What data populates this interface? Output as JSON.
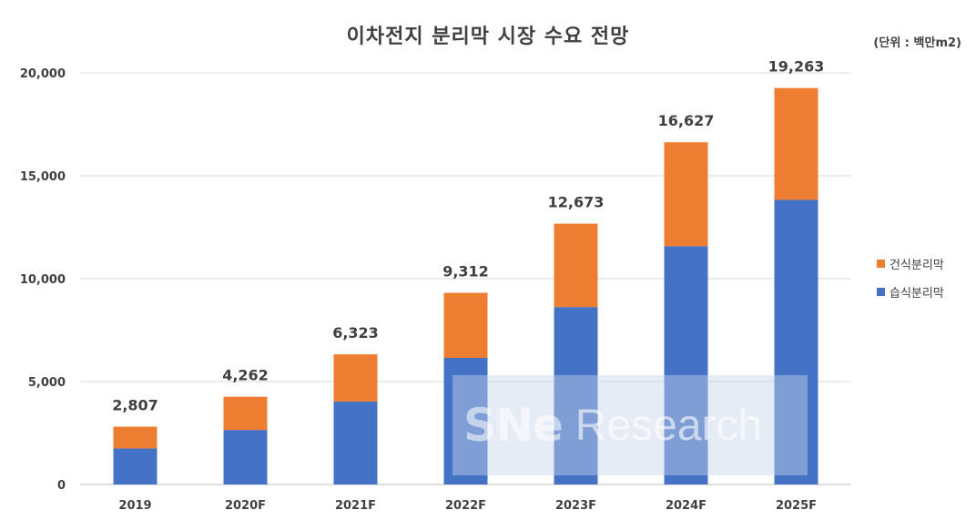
{
  "chart_data": {
    "type": "bar",
    "stacked": true,
    "title": "이차전지 분리막 시장 수요 전망",
    "unit": "(단위 : 백만m2)",
    "categories": [
      "2019",
      "2020F",
      "2021F",
      "2022F",
      "2023F",
      "2024F",
      "2025F"
    ],
    "series": [
      {
        "name": "습식분리막",
        "color": "#4472C4",
        "values": [
          1750,
          2650,
          4030,
          6150,
          8620,
          11580,
          13830
        ]
      },
      {
        "name": "건식분리막",
        "color": "#ED7D31",
        "values": [
          1057,
          1612,
          2293,
          3162,
          4053,
          5047,
          5433
        ]
      }
    ],
    "totals": [
      2807,
      4262,
      6323,
      9312,
      12673,
      16627,
      19263
    ],
    "total_labels": [
      "2,807",
      "4,262",
      "6,323",
      "9,312",
      "12,673",
      "16,627",
      "19,263"
    ],
    "ylim": [
      0,
      20000
    ],
    "yticks": [
      0,
      5000,
      10000,
      15000,
      20000
    ],
    "ytick_labels": [
      "0",
      "5,000",
      "10,000",
      "15,000",
      "20,000"
    ],
    "grid": true,
    "legend_position": "right"
  },
  "legend": [
    {
      "label": "건식분리막",
      "color": "#ED7D31"
    },
    {
      "label": "습식분리막",
      "color": "#4472C4"
    }
  ],
  "watermark": {
    "brand": "SNe",
    "suffix": "Research"
  }
}
